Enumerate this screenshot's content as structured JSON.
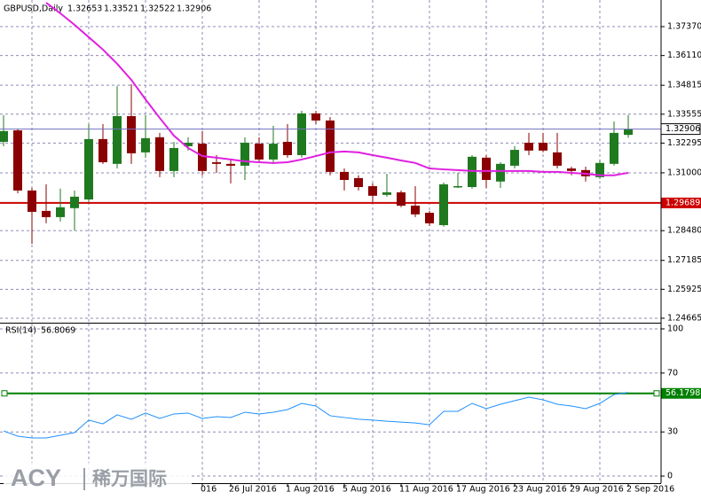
{
  "chart_data": [
    {
      "type": "candlestick",
      "title": "GBPUSD,Daily",
      "categories": [
        null,
        null,
        null,
        null,
        null,
        null,
        null,
        null,
        null,
        null,
        null,
        null,
        null,
        null,
        "016",
        null,
        "26 Jul 2016",
        null,
        null,
        null,
        "1 Aug 2016",
        null,
        null,
        null,
        "5 Aug 2016",
        null,
        null,
        null,
        "11 Aug 2016",
        null,
        null,
        null,
        "17 Aug 2016",
        null,
        null,
        null,
        "23 Aug 2016",
        null,
        null,
        null,
        "29 Aug 2016",
        null,
        null,
        null,
        "2 Sep 2016"
      ],
      "open": [
        1.3235,
        1.3285,
        1.3023,
        1.2934,
        1.2907,
        1.2946,
        1.2984,
        1.3247,
        1.3139,
        1.3347,
        1.3189,
        1.3255,
        1.3108,
        1.3216,
        1.3227,
        1.3146,
        1.3139,
        1.3131,
        1.3227,
        1.3158,
        1.3235,
        1.3177,
        1.3359,
        1.3328,
        1.3104,
        1.3077,
        1.3042,
        1.3004,
        1.3015,
        1.2957,
        1.2926,
        1.2872,
        1.3038,
        1.3038,
        1.3166,
        1.3062,
        1.3131,
        1.3231,
        1.3231,
        1.3189,
        1.3119,
        1.3112,
        1.3081,
        1.3139,
        1.32653
      ],
      "high": [
        1.3351,
        1.3293,
        1.3034,
        1.305,
        1.3031,
        1.3023,
        1.3312,
        1.3312,
        1.3478,
        1.3486,
        1.3351,
        1.3274,
        1.3235,
        1.3255,
        1.3282,
        1.3177,
        1.3158,
        1.3255,
        1.3255,
        1.3305,
        1.3312,
        1.337,
        1.337,
        1.3343,
        1.3119,
        1.3089,
        1.3054,
        1.3096,
        1.3023,
        1.3042,
        1.2934,
        1.3058,
        1.31,
        1.3177,
        1.3177,
        1.3146,
        1.3216,
        1.3274,
        1.3274,
        1.3274,
        1.3127,
        1.3127,
        1.3158,
        1.3324,
        1.33521
      ],
      "low": [
        1.3216,
        1.3011,
        1.2791,
        1.288,
        1.2888,
        1.2849,
        1.2973,
        1.3139,
        1.3119,
        1.3139,
        1.3166,
        1.3081,
        1.3081,
        1.3197,
        1.3089,
        1.31,
        1.3054,
        1.3069,
        1.3146,
        1.3139,
        1.3166,
        1.3166,
        1.3312,
        1.3089,
        1.3023,
        1.3023,
        1.2973,
        1.2996,
        1.295,
        1.2907,
        1.2868,
        1.2865,
        1.3034,
        1.3031,
        1.3034,
        1.3034,
        1.3119,
        1.3177,
        1.3189,
        1.3119,
        1.3089,
        1.3062,
        1.3073,
        1.3131,
        1.32522
      ],
      "close": [
        1.3282,
        1.3023,
        1.293,
        1.2907,
        1.295,
        1.2996,
        1.3247,
        1.3146,
        1.3347,
        1.3185,
        1.3251,
        1.3108,
        1.3208,
        1.3231,
        1.3108,
        1.3139,
        1.3131,
        1.3231,
        1.3158,
        1.3227,
        1.3177,
        1.3359,
        1.3328,
        1.3104,
        1.3069,
        1.3038,
        1.3,
        1.3015,
        1.2957,
        1.2919,
        1.288,
        1.305,
        1.3042,
        1.317,
        1.3069,
        1.3139,
        1.32,
        1.3197,
        1.3197,
        1.3131,
        1.3108,
        1.3085,
        1.3143,
        1.3274,
        1.32906
      ],
      "up_color": "#1f7a1f",
      "down_color": "#8b0000",
      "moving_average": {
        "color": "#e020e0",
        "values": [
          null,
          null,
          null,
          1.3841,
          1.3795,
          1.3745,
          1.3691,
          1.3637,
          1.3575,
          1.3505,
          1.342,
          1.3339,
          1.3262,
          1.3208,
          1.3173,
          1.3166,
          1.3158,
          1.315,
          1.3146,
          1.3143,
          1.3146,
          1.3158,
          1.3173,
          1.3189,
          1.3193,
          1.3189,
          1.3177,
          1.3166,
          1.3154,
          1.3143,
          1.3119,
          1.3115,
          1.3112,
          1.3108,
          1.3108,
          1.3108,
          1.3108,
          1.3108,
          1.3104,
          1.3104,
          1.31,
          1.3096,
          1.3089,
          1.3089,
          1.31
        ]
      },
      "price_line_color": "#7070c0",
      "level": 1.29689,
      "level_color": "#cc0000",
      "ylim": [
        1.2447,
        1.3853
      ],
      "yticks": [
        {
          "value": 1.3737,
          "label": "1.37370"
        },
        {
          "value": 1.3611,
          "label": "1.36110"
        },
        1.34815,
        1.33555,
        1.32295,
        {
          "value": 1.31,
          "label": "1.31000"
        },
        {
          "value": 1.2848,
          "label": "1.28480"
        },
        1.27185,
        1.25925,
        1.24665
      ],
      "grid": true
    },
    {
      "type": "line",
      "title": "RSI(14)",
      "values": [
        30.7,
        27.1,
        25.9,
        25.9,
        27.7,
        29.5,
        38.0,
        35.5,
        41.6,
        38.6,
        42.8,
        39.2,
        42.2,
        42.8,
        39.2,
        40.4,
        39.8,
        43.4,
        42.2,
        43.4,
        45.2,
        49.4,
        47.6,
        41.0,
        39.8,
        38.6,
        38.0,
        37.3,
        36.7,
        36.1,
        34.9,
        44.0,
        44.0,
        49.4,
        45.8,
        48.8,
        51.2,
        53.6,
        51.8,
        48.8,
        47.6,
        45.8,
        49.4,
        55.4,
        56.8069
      ],
      "color": "#1e90ff",
      "level": 56.1798,
      "level_color": "#008000",
      "ylim": [
        -4.8,
        103.6
      ],
      "yticks": [
        0,
        30,
        70,
        100
      ],
      "grid": true
    }
  ],
  "watermark": {
    "brand": "ACY",
    "name": "稀万国际"
  }
}
